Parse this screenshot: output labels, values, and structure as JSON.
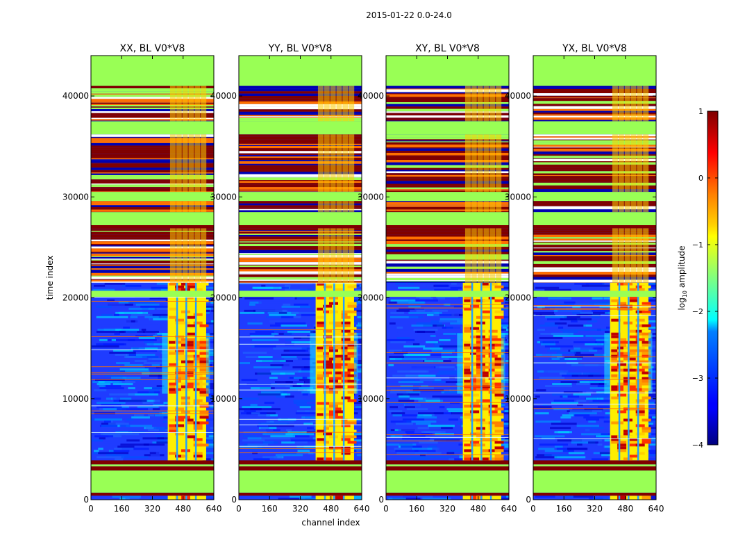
{
  "suptitle": "2015-01-22 0.0-24.0",
  "chart_data": [
    {
      "type": "heatmap",
      "title": "XX, BL V0*V8",
      "xlabel": "",
      "ylabel": "time index",
      "xlim": [
        0,
        640
      ],
      "ylim": [
        0,
        44000
      ],
      "xticks": [
        "0",
        "160",
        "320",
        "480",
        "640"
      ],
      "yticks": [
        "0",
        "10000",
        "20000",
        "30000",
        "40000"
      ],
      "signal_region": [
        400,
        600
      ]
    },
    {
      "type": "heatmap",
      "title": "YY, BL V0*V8",
      "xlabel": "channel index",
      "ylabel": "",
      "xlim": [
        0,
        640
      ],
      "ylim": [
        0,
        44000
      ],
      "xticks": [
        "0",
        "160",
        "320",
        "480",
        "640"
      ],
      "yticks": [
        "0",
        "10000",
        "20000",
        "30000",
        "40000"
      ],
      "signal_region": [
        400,
        600
      ]
    },
    {
      "type": "heatmap",
      "title": "XY, BL V0*V8",
      "xlabel": "",
      "ylabel": "",
      "xlim": [
        0,
        640
      ],
      "ylim": [
        0,
        44000
      ],
      "xticks": [
        "0",
        "160",
        "320",
        "480",
        "640"
      ],
      "yticks": [
        "0",
        "10000",
        "20000",
        "30000",
        "40000"
      ],
      "signal_region": [
        400,
        600
      ]
    },
    {
      "type": "heatmap",
      "title": "YX, BL V0*V8",
      "xlabel": "",
      "ylabel": "",
      "xlim": [
        0,
        640
      ],
      "ylim": [
        0,
        44000
      ],
      "xticks": [
        "0",
        "160",
        "320",
        "480",
        "640"
      ],
      "yticks": [
        "0",
        "10000",
        "20000",
        "30000",
        "40000"
      ],
      "signal_region": [
        400,
        600
      ]
    }
  ],
  "colorbar": {
    "label_prefix": "log",
    "label_sub": "10",
    "label_suffix": " amplitude",
    "range": [
      -4,
      1
    ],
    "ticks": [
      "1",
      "0",
      "−1",
      "−2",
      "−3",
      "−4"
    ],
    "colormap": "jet"
  },
  "bands": [
    {
      "t0": 0,
      "t1": 400,
      "kind": "noise"
    },
    {
      "t0": 400,
      "t1": 700,
      "kind": "flag-red"
    },
    {
      "t0": 700,
      "t1": 2900,
      "kind": "flag-green"
    },
    {
      "t0": 2900,
      "t1": 3300,
      "kind": "flag-red"
    },
    {
      "t0": 3300,
      "t1": 3500,
      "kind": "flag-green"
    },
    {
      "t0": 3500,
      "t1": 3900,
      "kind": "flag-red"
    },
    {
      "t0": 3900,
      "t1": 21500,
      "kind": "noise"
    },
    {
      "t0": 20100,
      "t1": 20700,
      "kind": "flag-green"
    },
    {
      "t0": 21500,
      "t1": 26900,
      "kind": "flag-dense"
    },
    {
      "t0": 26900,
      "t1": 27200,
      "kind": "flag-red"
    },
    {
      "t0": 27200,
      "t1": 28500,
      "kind": "flag-green"
    },
    {
      "t0": 28500,
      "t1": 29600,
      "kind": "flag-dense"
    },
    {
      "t0": 29600,
      "t1": 30500,
      "kind": "flag-green"
    },
    {
      "t0": 30500,
      "t1": 36200,
      "kind": "flag-dense"
    },
    {
      "t0": 36200,
      "t1": 37500,
      "kind": "flag-green"
    },
    {
      "t0": 37500,
      "t1": 41000,
      "kind": "flag-dense"
    },
    {
      "t0": 41000,
      "t1": 44000,
      "kind": "flag-green"
    }
  ],
  "colors": {
    "flag_green": "#99ff55",
    "flag_red": "#800000",
    "noise_base": "#1f3cff",
    "axis": "#000000"
  }
}
